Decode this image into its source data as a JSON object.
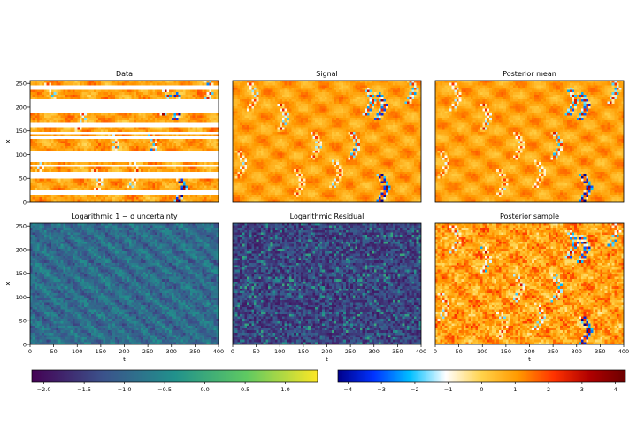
{
  "chart_data": [
    {
      "type": "heatmap",
      "title": "Data",
      "xlabel": "",
      "ylabel": "x",
      "xlim": [
        0,
        400
      ],
      "ylim": [
        0,
        256
      ],
      "colormap": "diverging",
      "data_kind": "masked_rows"
    },
    {
      "type": "heatmap",
      "title": "Signal",
      "xlabel": "",
      "ylabel": "",
      "xlim": [
        0,
        400
      ],
      "ylim": [
        0,
        256
      ],
      "colormap": "diverging",
      "data_kind": "chevrons"
    },
    {
      "type": "heatmap",
      "title": "Posterior mean",
      "xlabel": "",
      "ylabel": "",
      "xlim": [
        0,
        400
      ],
      "ylim": [
        0,
        256
      ],
      "colormap": "diverging",
      "data_kind": "chevrons"
    },
    {
      "type": "heatmap",
      "title": "Logarithmic 1 − σ uncertainty",
      "xlabel": "t",
      "ylabel": "x",
      "xlim": [
        0,
        400
      ],
      "ylim": [
        0,
        256
      ],
      "colormap": "viridis",
      "data_kind": "uncertainty"
    },
    {
      "type": "heatmap",
      "title": "Logarithmic Residual",
      "xlabel": "t",
      "ylabel": "",
      "xlim": [
        0,
        400
      ],
      "ylim": [
        0,
        256
      ],
      "colormap": "viridis",
      "data_kind": "residual"
    },
    {
      "type": "heatmap",
      "title": "Posterior sample",
      "xlabel": "t",
      "ylabel": "",
      "xlim": [
        0,
        400
      ],
      "ylim": [
        0,
        256
      ],
      "colormap": "diverging",
      "data_kind": "sample"
    }
  ],
  "x_ticks": [
    "0",
    "50",
    "100",
    "150",
    "200",
    "250",
    "300",
    "350",
    "400"
  ],
  "y_ticks": [
    "0",
    "50",
    "100",
    "150",
    "200",
    "250"
  ],
  "colorbars": [
    {
      "name": "viridis",
      "range": [
        -2.15,
        1.4
      ],
      "ticks": [
        "−2.0",
        "−1.5",
        "−1.0",
        "−0.5",
        "0.0",
        "0.5",
        "1.0"
      ],
      "tick_values": [
        -2.0,
        -1.5,
        -1.0,
        -0.5,
        0.0,
        0.5,
        1.0
      ]
    },
    {
      "name": "diverging",
      "range": [
        -4.3,
        4.3
      ],
      "ticks": [
        "−4",
        "−3",
        "−2",
        "−1",
        "0",
        "1",
        "2",
        "3",
        "4"
      ],
      "tick_values": [
        -4,
        -3,
        -2,
        -1,
        0,
        1,
        2,
        3,
        4
      ]
    }
  ],
  "colors": {
    "diverging": [
      "#00008b",
      "#0033ff",
      "#00bfff",
      "#ffffff",
      "#ffd24a",
      "#ff9a00",
      "#ff3300",
      "#b00000",
      "#6b0000"
    ],
    "viridis": [
      "#440154",
      "#3b528b",
      "#21918c",
      "#5ec962",
      "#fde725"
    ]
  }
}
